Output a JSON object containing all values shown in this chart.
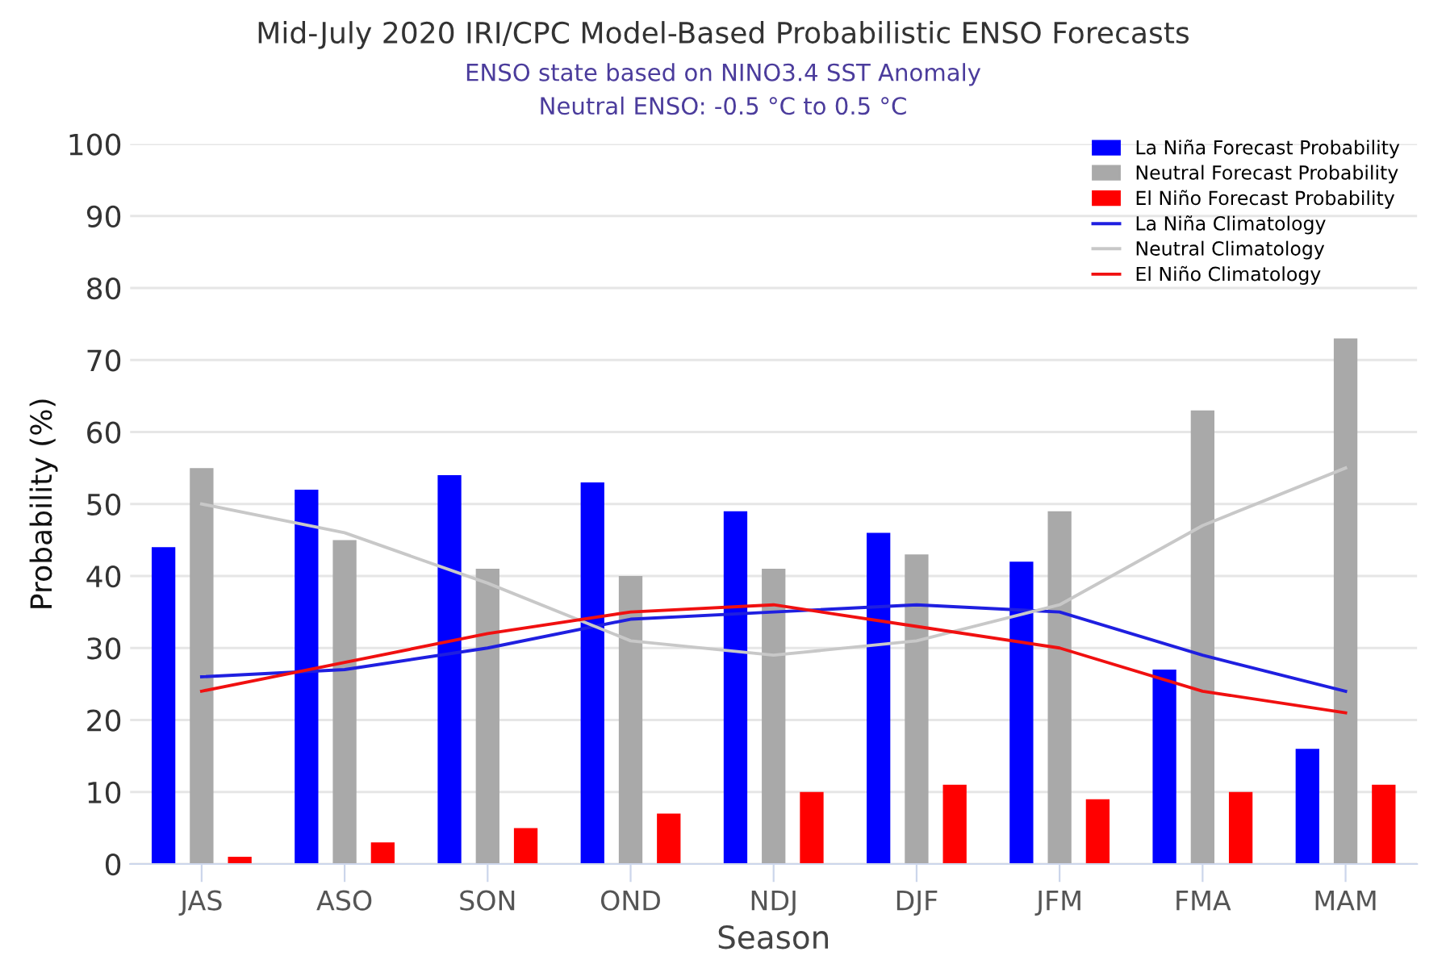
{
  "chart_data": {
    "type": "bar",
    "title": "Mid-July 2020 IRI/CPC Model-Based Probabilistic ENSO Forecasts",
    "subtitle": "ENSO state based on NINO3.4 SST Anomaly\nNeutral ENSO: -0.5 °C to 0.5 °C",
    "xlabel": "Season",
    "ylabel": "Probability (%)",
    "categories": [
      "JAS",
      "ASO",
      "SON",
      "OND",
      "NDJ",
      "DJF",
      "JFM",
      "FMA",
      "MAM"
    ],
    "series": [
      {
        "name": "La Niña Forecast Probability",
        "color": "#0000ff",
        "values": [
          44,
          52,
          54,
          53,
          49,
          46,
          42,
          27,
          16
        ]
      },
      {
        "name": "Neutral Forecast Probability",
        "color": "#a9a9a9",
        "values": [
          55,
          45,
          41,
          40,
          41,
          43,
          49,
          63,
          73
        ]
      },
      {
        "name": "El Niño Forecast Probability",
        "color": "#ff0000",
        "values": [
          1,
          3,
          5,
          7,
          10,
          11,
          9,
          10,
          11
        ]
      },
      {
        "name": "La Niña Climatology",
        "type": "line",
        "color": "#1f1fe0",
        "values": [
          26,
          27,
          30,
          34,
          35,
          36,
          35,
          29,
          24
        ]
      },
      {
        "name": "Neutral Climatology",
        "type": "line",
        "color": "#c8c8c8",
        "values": [
          50,
          46,
          39,
          31,
          29,
          31,
          36,
          47,
          55
        ]
      },
      {
        "name": "El Niño Climatology",
        "type": "line",
        "color": "#f01010",
        "values": [
          24,
          28,
          32,
          35,
          36,
          33,
          30,
          24,
          21
        ]
      }
    ],
    "ylim": [
      0,
      100
    ],
    "yticks": [
      0,
      10,
      20,
      30,
      40,
      50,
      60,
      70,
      80,
      90,
      100
    ],
    "grid": "y",
    "legend": "top right",
    "marker": "none",
    "line_style": "solid"
  }
}
